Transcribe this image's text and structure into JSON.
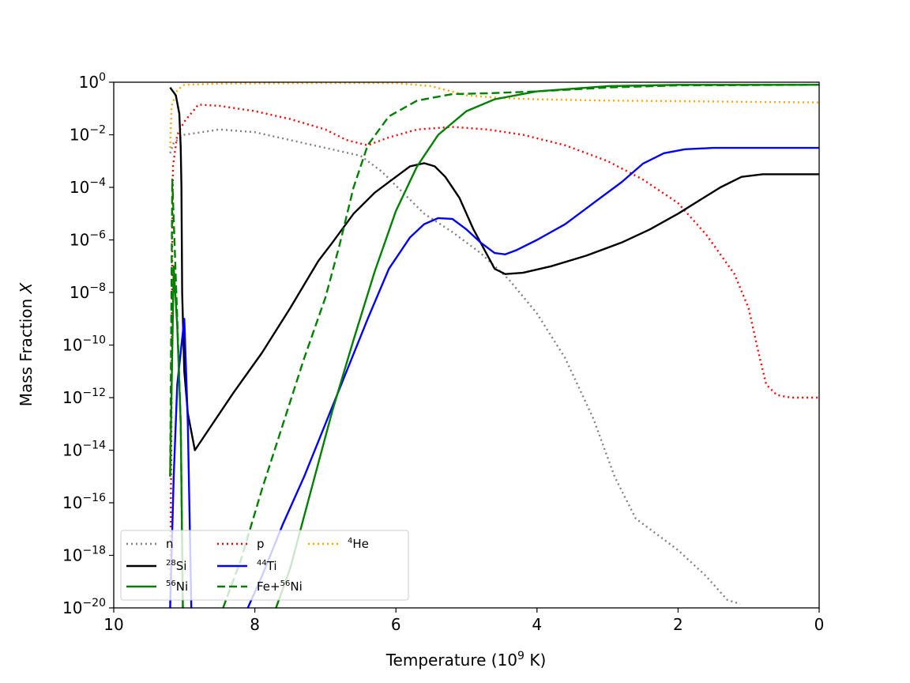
{
  "chart_data": {
    "type": "line",
    "title": "",
    "xlabel": {
      "pre": "Temperature (10",
      "sup": "9",
      "post": " K)"
    },
    "ylabel": {
      "pre": "Mass Fraction ",
      "italic": "X"
    },
    "xlim": [
      10,
      0
    ],
    "ylim_exp": [
      -20,
      0
    ],
    "yscale": "log",
    "x_ticks": [
      10,
      8,
      6,
      4,
      2,
      0
    ],
    "x_tick_labels": [
      "10",
      "8",
      "6",
      "4",
      "2",
      "0"
    ],
    "y_tick_exponents": [
      0,
      -2,
      -4,
      -6,
      -8,
      -10,
      -12,
      -14,
      -16,
      -18,
      -20
    ],
    "y_tick_labels": [
      {
        "base": "10",
        "exp": "0"
      },
      {
        "base": "10",
        "exp": "−2"
      },
      {
        "base": "10",
        "exp": "−4"
      },
      {
        "base": "10",
        "exp": "−6"
      },
      {
        "base": "10",
        "exp": "−8"
      },
      {
        "base": "10",
        "exp": "−10"
      },
      {
        "base": "10",
        "exp": "−12"
      },
      {
        "base": "10",
        "exp": "−14"
      },
      {
        "base": "10",
        "exp": "−16"
      },
      {
        "base": "10",
        "exp": "−18"
      },
      {
        "base": "10",
        "exp": "−20"
      }
    ],
    "legend_position": "lower-left",
    "series": [
      {
        "name": "n",
        "label": {
          "sup": "",
          "text": "n"
        },
        "color": "#808080",
        "style": "dotted",
        "points": [
          [
            9.2,
            -2.7
          ],
          [
            9.15,
            -2.3
          ],
          [
            9.0,
            -2.0
          ],
          [
            8.5,
            -1.8
          ],
          [
            8.0,
            -1.9
          ],
          [
            7.5,
            -2.2
          ],
          [
            7.0,
            -2.5
          ],
          [
            6.5,
            -2.8
          ],
          [
            6.2,
            -3.4
          ],
          [
            5.9,
            -4.2
          ],
          [
            5.6,
            -5.0
          ],
          [
            5.2,
            -5.7
          ],
          [
            4.8,
            -6.5
          ],
          [
            4.4,
            -7.5
          ],
          [
            4.0,
            -8.8
          ],
          [
            3.6,
            -10.5
          ],
          [
            3.2,
            -12.8
          ],
          [
            2.9,
            -15.0
          ],
          [
            2.6,
            -16.6
          ],
          [
            2.3,
            -17.2
          ],
          [
            2.0,
            -17.8
          ],
          [
            1.6,
            -18.8
          ],
          [
            1.3,
            -19.7
          ],
          [
            1.12,
            -19.85
          ]
        ]
      },
      {
        "name": "p",
        "label": {
          "sup": "",
          "text": "p"
        },
        "color": "#ff0000",
        "style": "dotted",
        "points": [
          [
            9.2,
            -20
          ],
          [
            9.18,
            -12
          ],
          [
            9.17,
            -6
          ],
          [
            9.16,
            -3.2
          ],
          [
            9.1,
            -2.0
          ],
          [
            9.0,
            -1.5
          ],
          [
            8.8,
            -0.85
          ],
          [
            8.5,
            -0.9
          ],
          [
            8.0,
            -1.1
          ],
          [
            7.5,
            -1.4
          ],
          [
            7.0,
            -1.8
          ],
          [
            6.7,
            -2.2
          ],
          [
            6.4,
            -2.4
          ],
          [
            6.1,
            -2.1
          ],
          [
            5.7,
            -1.8
          ],
          [
            5.2,
            -1.7
          ],
          [
            4.7,
            -1.8
          ],
          [
            4.2,
            -2.0
          ],
          [
            3.6,
            -2.4
          ],
          [
            3.0,
            -3.0
          ],
          [
            2.5,
            -3.7
          ],
          [
            2.0,
            -4.6
          ],
          [
            1.6,
            -5.8
          ],
          [
            1.2,
            -7.3
          ],
          [
            1.0,
            -8.6
          ],
          [
            0.85,
            -10.4
          ],
          [
            0.75,
            -11.5
          ],
          [
            0.6,
            -11.9
          ],
          [
            0.4,
            -12.0
          ],
          [
            0.0,
            -12.0
          ]
        ]
      },
      {
        "name": "4He",
        "label": {
          "sup": "4",
          "text": "He"
        },
        "color": "#ffa500",
        "style": "dotted",
        "points": [
          [
            9.2,
            -2.5
          ],
          [
            9.18,
            -0.9
          ],
          [
            9.1,
            -0.3
          ],
          [
            9.0,
            -0.1
          ],
          [
            8.5,
            -0.05
          ],
          [
            7.0,
            -0.03
          ],
          [
            6.0,
            -0.03
          ],
          [
            5.5,
            -0.15
          ],
          [
            5.0,
            -0.5
          ],
          [
            4.5,
            -0.6
          ],
          [
            4.0,
            -0.65
          ],
          [
            3.0,
            -0.7
          ],
          [
            2.0,
            -0.72
          ],
          [
            1.0,
            -0.75
          ],
          [
            0.0,
            -0.77
          ]
        ]
      },
      {
        "name": "28Si",
        "label": {
          "sup": "28",
          "text": "Si"
        },
        "color": "#000000",
        "style": "solid",
        "points": [
          [
            9.2,
            -0.2
          ],
          [
            9.12,
            -0.5
          ],
          [
            9.07,
            -1.2
          ],
          [
            9.05,
            -2.5
          ],
          [
            9.04,
            -4.0
          ],
          [
            9.03,
            -8.0
          ],
          [
            9.0,
            -11.0
          ],
          [
            8.95,
            -12.6
          ],
          [
            8.85,
            -14.0
          ],
          [
            8.7,
            -13.4
          ],
          [
            8.3,
            -11.8
          ],
          [
            7.9,
            -10.3
          ],
          [
            7.5,
            -8.6
          ],
          [
            7.3,
            -7.7
          ],
          [
            7.1,
            -6.8
          ],
          [
            6.9,
            -6.1
          ],
          [
            6.6,
            -5.0
          ],
          [
            6.3,
            -4.2
          ],
          [
            6.0,
            -3.6
          ],
          [
            5.8,
            -3.2
          ],
          [
            5.6,
            -3.08
          ],
          [
            5.45,
            -3.2
          ],
          [
            5.3,
            -3.6
          ],
          [
            5.1,
            -4.4
          ],
          [
            4.9,
            -5.6
          ],
          [
            4.7,
            -6.6
          ],
          [
            4.6,
            -7.1
          ],
          [
            4.45,
            -7.3
          ],
          [
            4.2,
            -7.25
          ],
          [
            3.8,
            -7.0
          ],
          [
            3.3,
            -6.6
          ],
          [
            2.8,
            -6.1
          ],
          [
            2.4,
            -5.6
          ],
          [
            2.0,
            -5.0
          ],
          [
            1.7,
            -4.5
          ],
          [
            1.4,
            -4.0
          ],
          [
            1.1,
            -3.6
          ],
          [
            0.8,
            -3.5
          ],
          [
            0.0,
            -3.5
          ]
        ]
      },
      {
        "name": "44Ti",
        "label": {
          "sup": "44",
          "text": "Ti"
        },
        "color": "#0000ff",
        "style": "solid",
        "points": [
          [
            9.2,
            -20
          ],
          [
            9.15,
            -15
          ],
          [
            9.1,
            -11.5
          ],
          [
            9.0,
            -9.0
          ],
          [
            8.95,
            -13.0
          ],
          [
            8.9,
            -20
          ],
          null,
          [
            8.1,
            -20
          ],
          [
            7.9,
            -18.8
          ],
          [
            7.6,
            -16.8
          ],
          [
            7.3,
            -15.0
          ],
          [
            7.0,
            -13.0
          ],
          [
            6.7,
            -11.0
          ],
          [
            6.4,
            -9.0
          ],
          [
            6.1,
            -7.1
          ],
          [
            5.8,
            -5.9
          ],
          [
            5.6,
            -5.4
          ],
          [
            5.4,
            -5.17
          ],
          [
            5.2,
            -5.2
          ],
          [
            5.0,
            -5.6
          ],
          [
            4.8,
            -6.1
          ],
          [
            4.6,
            -6.5
          ],
          [
            4.45,
            -6.55
          ],
          [
            4.3,
            -6.4
          ],
          [
            4.0,
            -6.0
          ],
          [
            3.6,
            -5.4
          ],
          [
            3.2,
            -4.6
          ],
          [
            2.8,
            -3.8
          ],
          [
            2.5,
            -3.1
          ],
          [
            2.2,
            -2.7
          ],
          [
            1.9,
            -2.55
          ],
          [
            1.5,
            -2.5
          ],
          [
            0.0,
            -2.5
          ]
        ]
      },
      {
        "name": "56Ni",
        "label": {
          "sup": "56",
          "text": "Ni"
        },
        "color": "#008000",
        "style": "solid",
        "points": [
          [
            9.2,
            -15
          ],
          [
            9.15,
            -7
          ],
          [
            9.1,
            -9.3
          ],
          [
            9.05,
            -13
          ],
          [
            9.02,
            -20
          ],
          null,
          [
            7.7,
            -20
          ],
          [
            7.5,
            -18.5
          ],
          [
            7.2,
            -15.5
          ],
          [
            6.9,
            -12.5
          ],
          [
            6.6,
            -9.8
          ],
          [
            6.3,
            -7.2
          ],
          [
            6.0,
            -4.9
          ],
          [
            5.7,
            -3.2
          ],
          [
            5.4,
            -2.0
          ],
          [
            5.0,
            -1.1
          ],
          [
            4.6,
            -0.65
          ],
          [
            4.0,
            -0.35
          ],
          [
            3.0,
            -0.15
          ],
          [
            2.0,
            -0.1
          ],
          [
            0.0,
            -0.1
          ]
        ]
      },
      {
        "name": "Fe+56Ni",
        "label": {
          "sup": "56",
          "text": "Ni",
          "prefix": "Fe+"
        },
        "color": "#008000",
        "style": "dashed",
        "points": [
          [
            9.2,
            -15
          ],
          [
            9.17,
            -3.7
          ],
          [
            9.1,
            -9.0
          ],
          [
            9.05,
            -13
          ],
          [
            9.02,
            -20
          ],
          null,
          [
            8.45,
            -20
          ],
          [
            8.2,
            -18.2
          ],
          [
            7.9,
            -15.5
          ],
          [
            7.6,
            -13.0
          ],
          [
            7.3,
            -10.5
          ],
          [
            7.0,
            -8.2
          ],
          [
            6.8,
            -6.2
          ],
          [
            6.6,
            -4.0
          ],
          [
            6.4,
            -2.4
          ],
          [
            6.1,
            -1.3
          ],
          [
            5.7,
            -0.7
          ],
          [
            5.2,
            -0.45
          ],
          [
            4.7,
            -0.42
          ],
          [
            4.0,
            -0.35
          ],
          [
            3.0,
            -0.2
          ],
          [
            2.0,
            -0.12
          ],
          [
            0.0,
            -0.1
          ]
        ]
      }
    ]
  }
}
